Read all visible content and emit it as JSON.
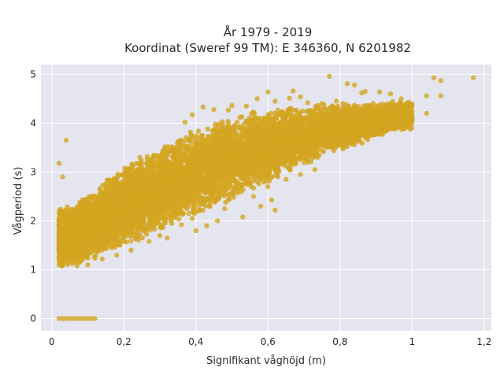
{
  "chart_data": {
    "type": "scatter",
    "title": "År 1979 - 2019",
    "subtitle": "Koordinat (Sweref 99 TM): E 346360, N 6201982",
    "xlabel": "Signifikant våghöjd (m)",
    "ylabel": "Vågperiod (s)",
    "xlim": [
      -0.03,
      1.22
    ],
    "ylim": [
      -0.25,
      5.2
    ],
    "x_ticks": [
      0,
      0.2,
      0.4,
      0.6,
      0.8,
      1.0,
      1.2
    ],
    "x_tick_labels": [
      "0",
      "0,2",
      "0,4",
      "0,6",
      "0,8",
      "1",
      "1,2"
    ],
    "y_ticks": [
      0,
      1,
      2,
      3,
      4,
      5
    ],
    "y_tick_labels": [
      "0",
      "1",
      "2",
      "3",
      "4",
      "5"
    ],
    "grid": true,
    "colors": {
      "marker": "#d4a520",
      "background": "#e5e5ef",
      "grid": "#ffffff"
    },
    "points": [
      [
        0.02,
        0.0
      ],
      [
        0.03,
        0.0
      ],
      [
        0.04,
        0.0
      ],
      [
        0.05,
        0.0
      ],
      [
        0.06,
        0.0
      ],
      [
        0.07,
        0.0
      ],
      [
        0.08,
        0.0
      ],
      [
        0.09,
        0.0
      ],
      [
        0.1,
        0.0
      ],
      [
        0.11,
        0.0
      ],
      [
        0.12,
        0.0
      ],
      [
        0.02,
        3.18
      ],
      [
        0.03,
        2.9
      ],
      [
        0.04,
        3.65
      ],
      [
        1.17,
        4.93
      ],
      [
        1.06,
        4.93
      ],
      [
        1.08,
        4.87
      ],
      [
        1.08,
        4.56
      ],
      [
        1.04,
        4.56
      ],
      [
        1.04,
        4.2
      ],
      [
        0.77,
        4.96
      ],
      [
        0.82,
        4.81
      ],
      [
        0.84,
        4.78
      ],
      [
        0.86,
        4.62
      ],
      [
        0.87,
        4.65
      ],
      [
        0.91,
        4.64
      ],
      [
        0.94,
        4.6
      ],
      [
        0.97,
        4.5
      ],
      [
        0.99,
        4.43
      ],
      [
        1.0,
        4.25
      ],
      [
        1.0,
        4.08
      ],
      [
        0.96,
        4.0
      ],
      [
        0.6,
        4.64
      ],
      [
        0.67,
        4.66
      ],
      [
        0.69,
        4.54
      ],
      [
        0.71,
        4.42
      ],
      [
        0.75,
        4.4
      ],
      [
        0.79,
        4.45
      ],
      [
        0.57,
        4.5
      ],
      [
        0.54,
        4.35
      ],
      [
        0.49,
        4.27
      ],
      [
        0.5,
        4.36
      ],
      [
        0.62,
        4.45
      ],
      [
        0.66,
        4.51
      ],
      [
        0.42,
        4.33
      ],
      [
        0.45,
        4.28
      ],
      [
        0.39,
        4.17
      ],
      [
        0.37,
        4.02
      ],
      [
        0.71,
        3.2
      ],
      [
        0.73,
        3.05
      ],
      [
        0.69,
        2.95
      ],
      [
        0.65,
        2.85
      ],
      [
        0.6,
        2.7
      ],
      [
        0.61,
        2.43
      ],
      [
        0.62,
        2.22
      ],
      [
        0.58,
        2.3
      ],
      [
        0.56,
        2.5
      ],
      [
        0.53,
        2.08
      ],
      [
        0.48,
        2.25
      ],
      [
        0.46,
        2.0
      ],
      [
        0.43,
        1.9
      ],
      [
        0.4,
        1.8
      ],
      [
        0.39,
        2.05
      ],
      [
        0.36,
        1.92
      ],
      [
        0.32,
        1.65
      ],
      [
        0.3,
        1.7
      ],
      [
        0.27,
        1.58
      ],
      [
        0.22,
        1.4
      ],
      [
        0.18,
        1.3
      ],
      [
        0.14,
        1.22
      ],
      [
        0.1,
        1.1
      ],
      [
        0.07,
        1.08
      ],
      [
        0.05,
        1.2
      ],
      [
        0.04,
        1.3
      ],
      [
        0.04,
        1.55
      ],
      [
        0.03,
        1.45
      ]
    ],
    "cloud": {
      "x_range": [
        0.02,
        1.0
      ],
      "x_profile": [
        0.06,
        0.15,
        0.25,
        0.35,
        0.45,
        0.55,
        0.65,
        0.75,
        0.85,
        0.95
      ],
      "lower_edge": [
        1.05,
        1.3,
        1.62,
        1.95,
        2.25,
        2.6,
        2.95,
        3.3,
        3.55,
        3.85
      ],
      "upper_edge": [
        2.3,
        2.85,
        3.35,
        3.75,
        4.05,
        4.25,
        4.35,
        4.4,
        4.42,
        4.45
      ],
      "density_count": 9000
    }
  }
}
